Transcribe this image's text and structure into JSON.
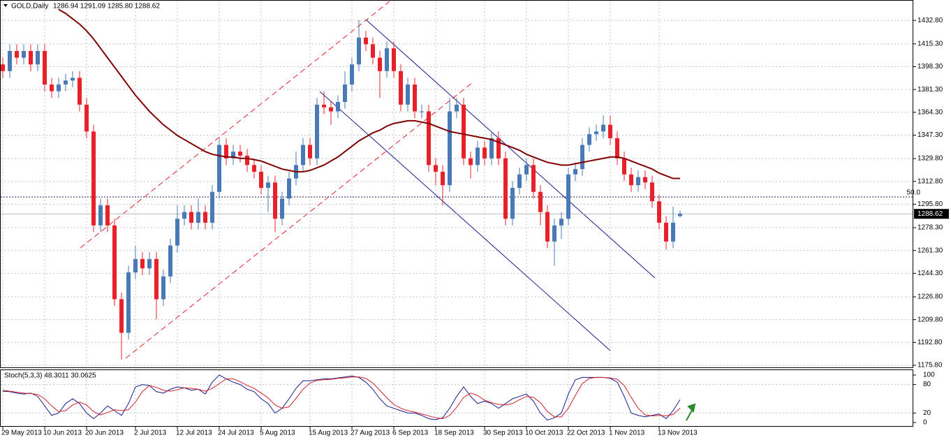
{
  "chart_data": [
    {
      "type": "candlestick",
      "title": "GOLD,Daily",
      "quote": "1286.94 1291.09 1285.80 1288.62",
      "categories": [
        "29 May 2013",
        null,
        null,
        null,
        null,
        null,
        "10 Jun 2013",
        null,
        null,
        null,
        null,
        null,
        "20 Jun 2013",
        null,
        null,
        null,
        null,
        null,
        null,
        "2 Jul 2013",
        null,
        null,
        null,
        null,
        null,
        "12 Jul 2013",
        null,
        null,
        null,
        null,
        null,
        "24 Jul 2013",
        null,
        null,
        null,
        null,
        null,
        "5 Aug 2013",
        null,
        null,
        null,
        null,
        null,
        null,
        "15 Aug 2013",
        null,
        null,
        null,
        null,
        null,
        "27 Aug 2013",
        null,
        null,
        null,
        null,
        null,
        "6 Sep 2013",
        null,
        null,
        null,
        null,
        null,
        "18 Sep 2013",
        null,
        null,
        null,
        null,
        null,
        null,
        "30 Sep 2013",
        null,
        null,
        null,
        null,
        null,
        "10 Oct 2013",
        null,
        null,
        null,
        null,
        null,
        "22 Oct 2013",
        null,
        null,
        null,
        null,
        null,
        "1 Nov 2013",
        null,
        null,
        null,
        null,
        null,
        null,
        "13 Nov 2013",
        null,
        null,
        null
      ],
      "open": [
        1400,
        1395,
        1410,
        1405,
        1410,
        1400,
        1410,
        1385,
        1380,
        1385,
        1388,
        1390,
        1370,
        1350,
        1280,
        1295,
        1280,
        1225,
        1200,
        1245,
        1255,
        1248,
        1255,
        1225,
        1242,
        1265,
        1285,
        1290,
        1282,
        1290,
        1282,
        1305,
        1340,
        1330,
        1335,
        1332,
        1325,
        1320,
        1308,
        1312,
        1285,
        1300,
        1315,
        1325,
        1340,
        1330,
        1370,
        1368,
        1365,
        1372,
        1385,
        1400,
        1420,
        1415,
        1405,
        1395,
        1412,
        1395,
        1370,
        1385,
        1365,
        1365,
        1325,
        1320,
        1310,
        1365,
        1370,
        1330,
        1325,
        1338,
        1330,
        1345,
        1330,
        1285,
        1308,
        1318,
        1325,
        1305,
        1290,
        1268,
        1280,
        1285,
        1318,
        1322,
        1340,
        1348,
        1350,
        1355,
        1345,
        1330,
        1318,
        1310,
        1316,
        1312,
        1298,
        1282,
        1268,
        1286.94
      ],
      "high": [
        1405,
        1415,
        1415,
        1415,
        1415,
        1415,
        1415,
        1390,
        1390,
        1393,
        1395,
        1395,
        1375,
        1355,
        1300,
        1300,
        1285,
        1230,
        1250,
        1265,
        1260,
        1260,
        1260,
        1247,
        1270,
        1295,
        1295,
        1295,
        1300,
        1295,
        1310,
        1345,
        1345,
        1340,
        1340,
        1337,
        1330,
        1325,
        1317,
        1317,
        1305,
        1320,
        1335,
        1345,
        1345,
        1375,
        1380,
        1373,
        1377,
        1395,
        1405,
        1433,
        1425,
        1420,
        1410,
        1417,
        1417,
        1400,
        1390,
        1390,
        1370,
        1370,
        1330,
        1325,
        1375,
        1375,
        1375,
        1335,
        1343,
        1343,
        1350,
        1350,
        1335,
        1313,
        1323,
        1330,
        1330,
        1310,
        1295,
        1285,
        1290,
        1323,
        1327,
        1345,
        1353,
        1355,
        1362,
        1362,
        1350,
        1335,
        1323,
        1321,
        1321,
        1317,
        1303,
        1287,
        1294,
        1291.09
      ],
      "low": [
        1390,
        1390,
        1400,
        1400,
        1395,
        1395,
        1380,
        1375,
        1375,
        1380,
        1383,
        1365,
        1345,
        1275,
        1275,
        1275,
        1220,
        1180,
        1195,
        1240,
        1243,
        1243,
        1210,
        1220,
        1237,
        1260,
        1280,
        1277,
        1277,
        1277,
        1277,
        1300,
        1325,
        1325,
        1327,
        1320,
        1315,
        1303,
        1290,
        1275,
        1280,
        1295,
        1310,
        1320,
        1325,
        1325,
        1363,
        1355,
        1360,
        1367,
        1380,
        1395,
        1410,
        1400,
        1375,
        1390,
        1390,
        1365,
        1365,
        1360,
        1360,
        1320,
        1310,
        1295,
        1305,
        1360,
        1325,
        1315,
        1320,
        1325,
        1325,
        1325,
        1280,
        1280,
        1303,
        1313,
        1300,
        1280,
        1263,
        1250,
        1270,
        1280,
        1313,
        1317,
        1335,
        1343,
        1345,
        1340,
        1325,
        1313,
        1305,
        1305,
        1307,
        1293,
        1277,
        1262,
        1263,
        1285.8
      ],
      "close": [
        1395,
        1410,
        1405,
        1410,
        1400,
        1410,
        1385,
        1380,
        1385,
        1388,
        1390,
        1370,
        1350,
        1280,
        1295,
        1280,
        1225,
        1200,
        1245,
        1255,
        1248,
        1255,
        1225,
        1242,
        1265,
        1285,
        1290,
        1282,
        1290,
        1282,
        1305,
        1340,
        1330,
        1335,
        1332,
        1325,
        1320,
        1308,
        1312,
        1285,
        1300,
        1315,
        1325,
        1340,
        1330,
        1370,
        1368,
        1365,
        1372,
        1385,
        1400,
        1420,
        1415,
        1405,
        1395,
        1412,
        1395,
        1370,
        1385,
        1365,
        1365,
        1325,
        1320,
        1310,
        1365,
        1370,
        1330,
        1325,
        1338,
        1330,
        1345,
        1330,
        1285,
        1308,
        1318,
        1325,
        1305,
        1290,
        1268,
        1280,
        1285,
        1318,
        1322,
        1340,
        1348,
        1350,
        1355,
        1345,
        1330,
        1318,
        1310,
        1316,
        1312,
        1298,
        1282,
        1268,
        1282,
        1288.62
      ],
      "up_color": "#4a7ab5",
      "down_color": "#e8202a",
      "overlay": {
        "color": "#800000",
        "values": [
          null,
          null,
          null,
          null,
          null,
          null,
          null,
          null,
          1441,
          1438,
          1434,
          1430,
          1425,
          1419,
          1412,
          1405,
          1398,
          1391,
          1384,
          1377,
          1371,
          1365,
          1360,
          1355,
          1351,
          1347,
          1344,
          1341,
          1338,
          1335,
          1333,
          1332,
          1331,
          1331,
          1330,
          1330,
          1329,
          1328,
          1326,
          1324,
          1322,
          1321,
          1320,
          1320,
          1321,
          1323,
          1325,
          1328,
          1331,
          1335,
          1339,
          1343,
          1346,
          1349,
          1351,
          1354,
          1356,
          1357,
          1358,
          1358,
          1357,
          1356,
          1354,
          1352,
          1350,
          1349,
          1348,
          1347,
          1346,
          1345,
          1344,
          1342,
          1340,
          1338,
          1336,
          1333,
          1331,
          1329,
          1327,
          1326,
          1325,
          1325,
          1326,
          1327,
          1328,
          1329,
          1330,
          1331,
          1331,
          1330,
          1328,
          1326,
          1324,
          1322,
          1319,
          1317,
          1315,
          1315
        ]
      },
      "levels": [
        {
          "value": 1301.2,
          "label": "50.0"
        }
      ],
      "last_label": "1288.62",
      "ylim": [
        1173.7,
        1448.0
      ],
      "yticks": [
        {
          "value": 1432.8,
          "label": "1432.80"
        },
        {
          "value": 1415.3,
          "label": "1415.30"
        },
        {
          "value": 1398.3,
          "label": "1398.30"
        },
        {
          "value": 1381.3,
          "label": "1381.30"
        },
        {
          "value": 1364.3,
          "label": "1364.30"
        },
        {
          "value": 1347.3,
          "label": "1347.30"
        },
        {
          "value": 1329.8,
          "label": "1329.80"
        },
        {
          "value": 1312.8,
          "label": "1312.80"
        },
        {
          "value": 1295.8,
          "label": "1295.80"
        },
        {
          "value": 1278.3,
          "label": "1278.30"
        },
        {
          "value": 1261.3,
          "label": "1261.30"
        },
        {
          "value": 1244.3,
          "label": "1244.30"
        },
        {
          "value": 1226.8,
          "label": "1226.80"
        },
        {
          "value": 1209.8,
          "label": "1209.80"
        },
        {
          "value": 1192.8,
          "label": "1192.80"
        },
        {
          "value": 1175.8,
          "label": "1175.80"
        }
      ],
      "grid": true
    },
    {
      "type": "line",
      "title": "Stoch(5,3,3) 48.3011 30.0625",
      "series": [
        {
          "color": "#1a1a8c",
          "values": [
            66,
            65,
            62,
            60,
            62,
            55,
            35,
            15,
            20,
            40,
            50,
            40,
            20,
            8,
            20,
            35,
            25,
            15,
            40,
            75,
            80,
            78,
            65,
            62,
            70,
            75,
            73,
            68,
            70,
            60,
            85,
            100,
            92,
            85,
            80,
            70,
            65,
            50,
            40,
            20,
            30,
            50,
            72,
            88,
            88,
            90,
            92,
            92,
            94,
            96,
            98,
            95,
            85,
            70,
            50,
            35,
            30,
            25,
            20,
            20,
            15,
            8,
            6,
            10,
            30,
            55,
            75,
            55,
            40,
            45,
            40,
            30,
            40,
            50,
            55,
            60,
            45,
            20,
            5,
            10,
            20,
            60,
            90,
            95,
            95,
            95,
            95,
            93,
            85,
            55,
            20,
            15,
            12,
            15,
            18,
            8,
            25,
            48.3011
          ]
        },
        {
          "color": "#d0202a",
          "values": [
            68,
            66,
            64,
            62,
            61,
            59,
            50,
            35,
            23,
            25,
            37,
            43,
            37,
            23,
            16,
            21,
            27,
            25,
            27,
            43,
            65,
            78,
            74,
            68,
            66,
            69,
            73,
            72,
            70,
            66,
            72,
            82,
            92,
            92,
            86,
            78,
            72,
            62,
            52,
            37,
            30,
            33,
            51,
            70,
            83,
            89,
            90,
            91,
            93,
            94,
            96,
            96,
            93,
            83,
            68,
            52,
            38,
            30,
            25,
            22,
            18,
            14,
            10,
            8,
            15,
            32,
            53,
            62,
            57,
            47,
            42,
            38,
            37,
            40,
            48,
            55,
            53,
            42,
            23,
            12,
            12,
            30,
            57,
            82,
            93,
            95,
            95,
            94,
            91,
            78,
            53,
            30,
            16,
            14,
            15,
            14,
            17,
            30.0625
          ]
        }
      ],
      "ylim": [
        -7.4,
        110.3
      ],
      "yticks": [
        100,
        80,
        20,
        0
      ],
      "grid": true
    }
  ]
}
